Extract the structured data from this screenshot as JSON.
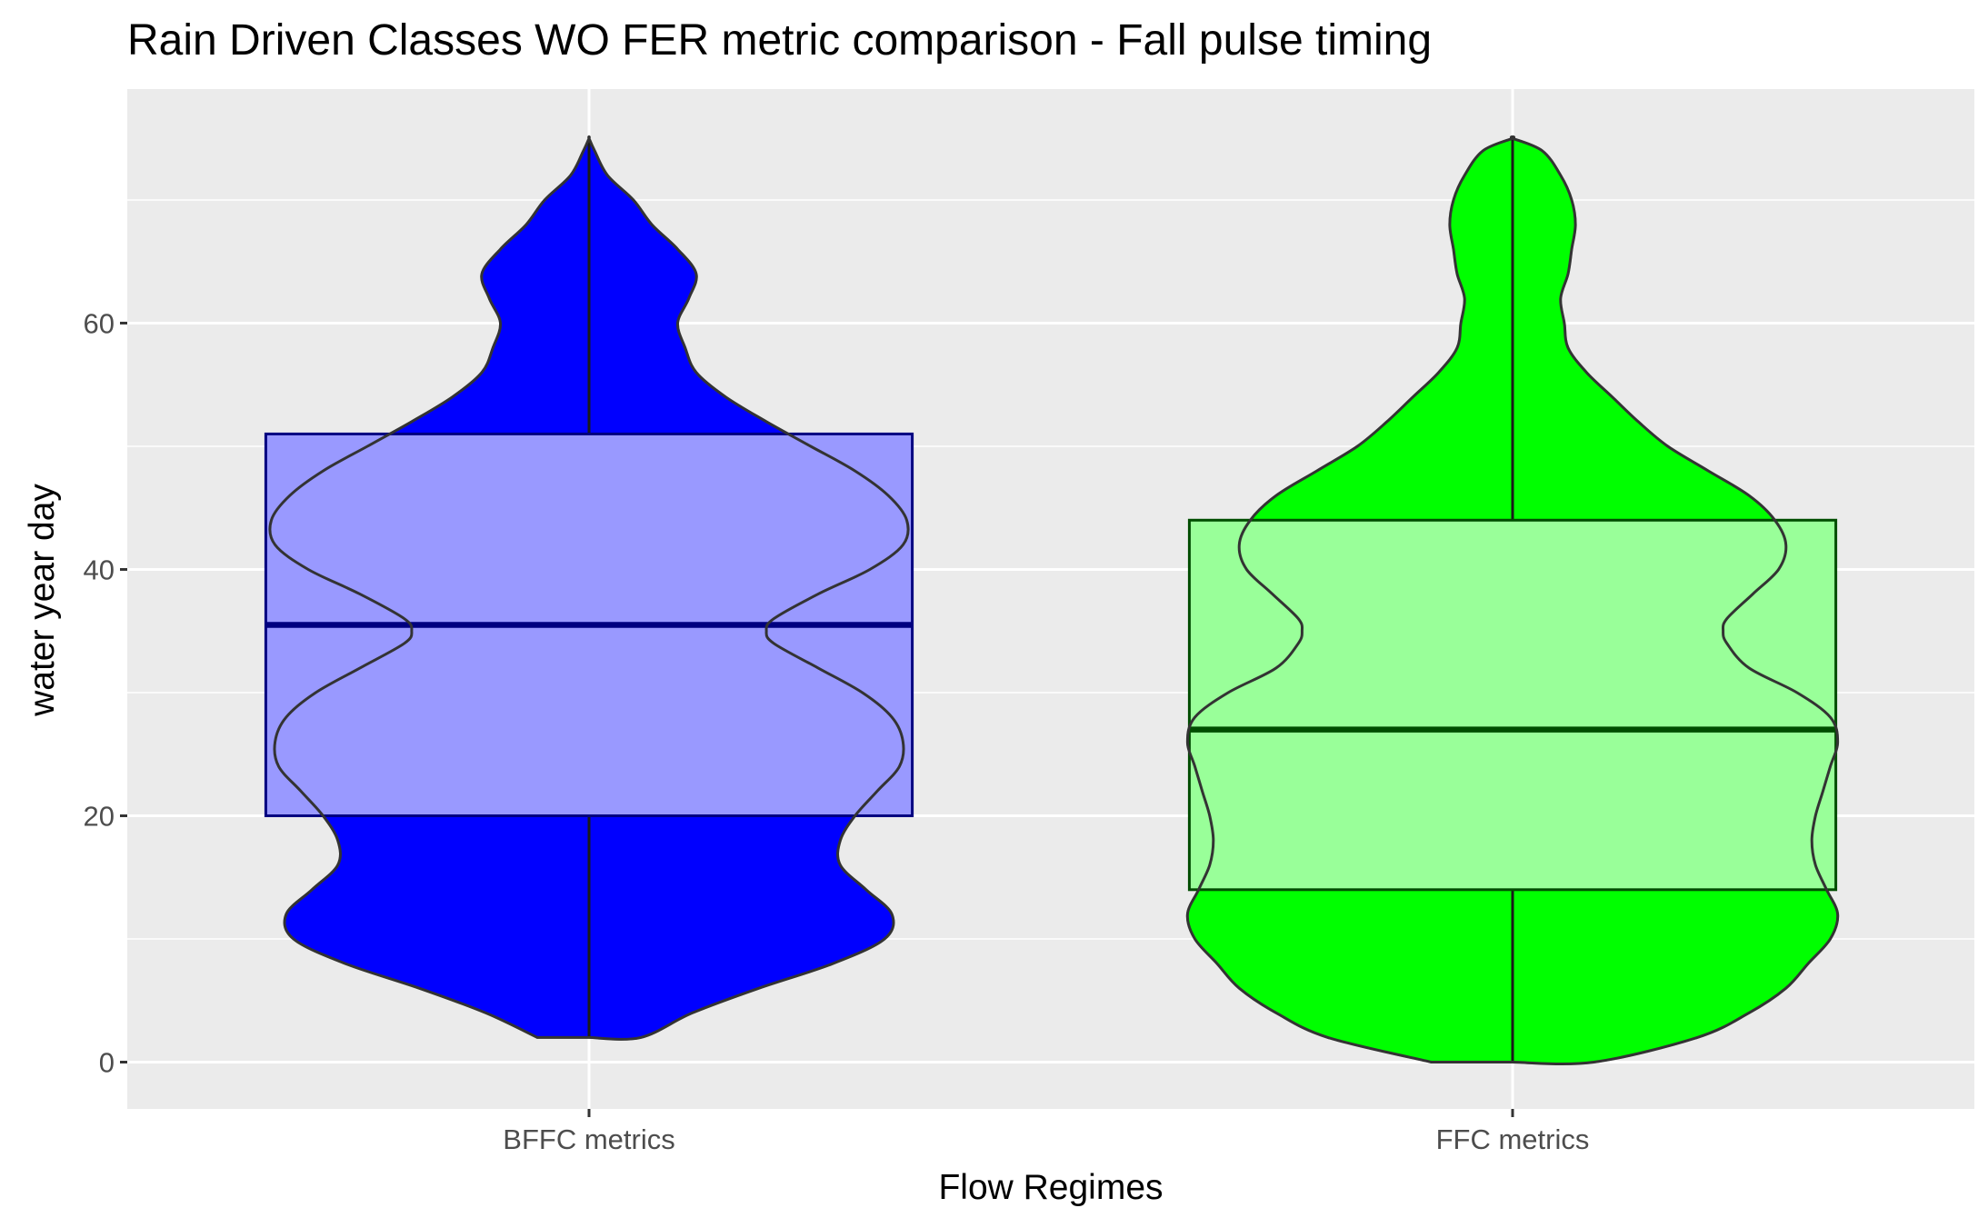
{
  "chart_data": {
    "type": "violin",
    "title": "Rain Driven Classes WO FER metric comparison  - Fall pulse timing",
    "xlabel": "Flow Regimes",
    "ylabel": "water year day",
    "ylim": [
      -3.8,
      79
    ],
    "yticks": [
      0,
      20,
      40,
      60
    ],
    "categories": [
      "BFFC metrics",
      "FFC metrics"
    ],
    "grid": true,
    "series": [
      {
        "category": "BFFC metrics",
        "fill": "#0000ff",
        "box_fill": "#9999ff",
        "box_stroke": "#000080",
        "box": {
          "q1": 20,
          "median": 35.5,
          "q3": 51,
          "whisker_low": 2,
          "whisker_high": 75
        },
        "density_width": [
          [
            2,
            0.14
          ],
          [
            4,
            0.28
          ],
          [
            6,
            0.46
          ],
          [
            8,
            0.66
          ],
          [
            10,
            0.8
          ],
          [
            12,
            0.82
          ],
          [
            14,
            0.75
          ],
          [
            16,
            0.68
          ],
          [
            18,
            0.68
          ],
          [
            20,
            0.72
          ],
          [
            22,
            0.78
          ],
          [
            24,
            0.84
          ],
          [
            26,
            0.85
          ],
          [
            28,
            0.82
          ],
          [
            30,
            0.74
          ],
          [
            32,
            0.62
          ],
          [
            34,
            0.5
          ],
          [
            35,
            0.48
          ],
          [
            36,
            0.5
          ],
          [
            38,
            0.62
          ],
          [
            40,
            0.76
          ],
          [
            42,
            0.85
          ],
          [
            44,
            0.86
          ],
          [
            46,
            0.81
          ],
          [
            48,
            0.72
          ],
          [
            50,
            0.6
          ],
          [
            52,
            0.48
          ],
          [
            54,
            0.37
          ],
          [
            56,
            0.29
          ],
          [
            58,
            0.26
          ],
          [
            60,
            0.24
          ],
          [
            62,
            0.27
          ],
          [
            64,
            0.29
          ],
          [
            66,
            0.24
          ],
          [
            68,
            0.17
          ],
          [
            70,
            0.12
          ],
          [
            72,
            0.05
          ],
          [
            74,
            0.015
          ],
          [
            75,
            0
          ]
        ]
      },
      {
        "category": "FFC metrics",
        "fill": "#00ff00",
        "box_fill": "#99ff99",
        "box_stroke": "#004d00",
        "box": {
          "q1": 14,
          "median": 27,
          "q3": 44,
          "whisker_low": 0,
          "whisker_high": 75
        },
        "density_width": [
          [
            0,
            0.22
          ],
          [
            2,
            0.5
          ],
          [
            4,
            0.64
          ],
          [
            6,
            0.74
          ],
          [
            8,
            0.8
          ],
          [
            10,
            0.86
          ],
          [
            12,
            0.88
          ],
          [
            14,
            0.85
          ],
          [
            16,
            0.82
          ],
          [
            18,
            0.81
          ],
          [
            20,
            0.82
          ],
          [
            22,
            0.84
          ],
          [
            24,
            0.86
          ],
          [
            26,
            0.88
          ],
          [
            28,
            0.86
          ],
          [
            30,
            0.77
          ],
          [
            32,
            0.64
          ],
          [
            34,
            0.58
          ],
          [
            35,
            0.57
          ],
          [
            36,
            0.58
          ],
          [
            38,
            0.65
          ],
          [
            40,
            0.72
          ],
          [
            42,
            0.74
          ],
          [
            44,
            0.71
          ],
          [
            46,
            0.64
          ],
          [
            48,
            0.53
          ],
          [
            50,
            0.42
          ],
          [
            52,
            0.34
          ],
          [
            54,
            0.27
          ],
          [
            56,
            0.2
          ],
          [
            58,
            0.15
          ],
          [
            60,
            0.14
          ],
          [
            62,
            0.13
          ],
          [
            64,
            0.15
          ],
          [
            66,
            0.16
          ],
          [
            68,
            0.17
          ],
          [
            70,
            0.16
          ],
          [
            72,
            0.13
          ],
          [
            74,
            0.08
          ],
          [
            75,
            0
          ]
        ]
      }
    ],
    "overlay_fill": "#f5f5f5",
    "panel_background": "#ebebeb",
    "grid_color": "#ffffff"
  }
}
